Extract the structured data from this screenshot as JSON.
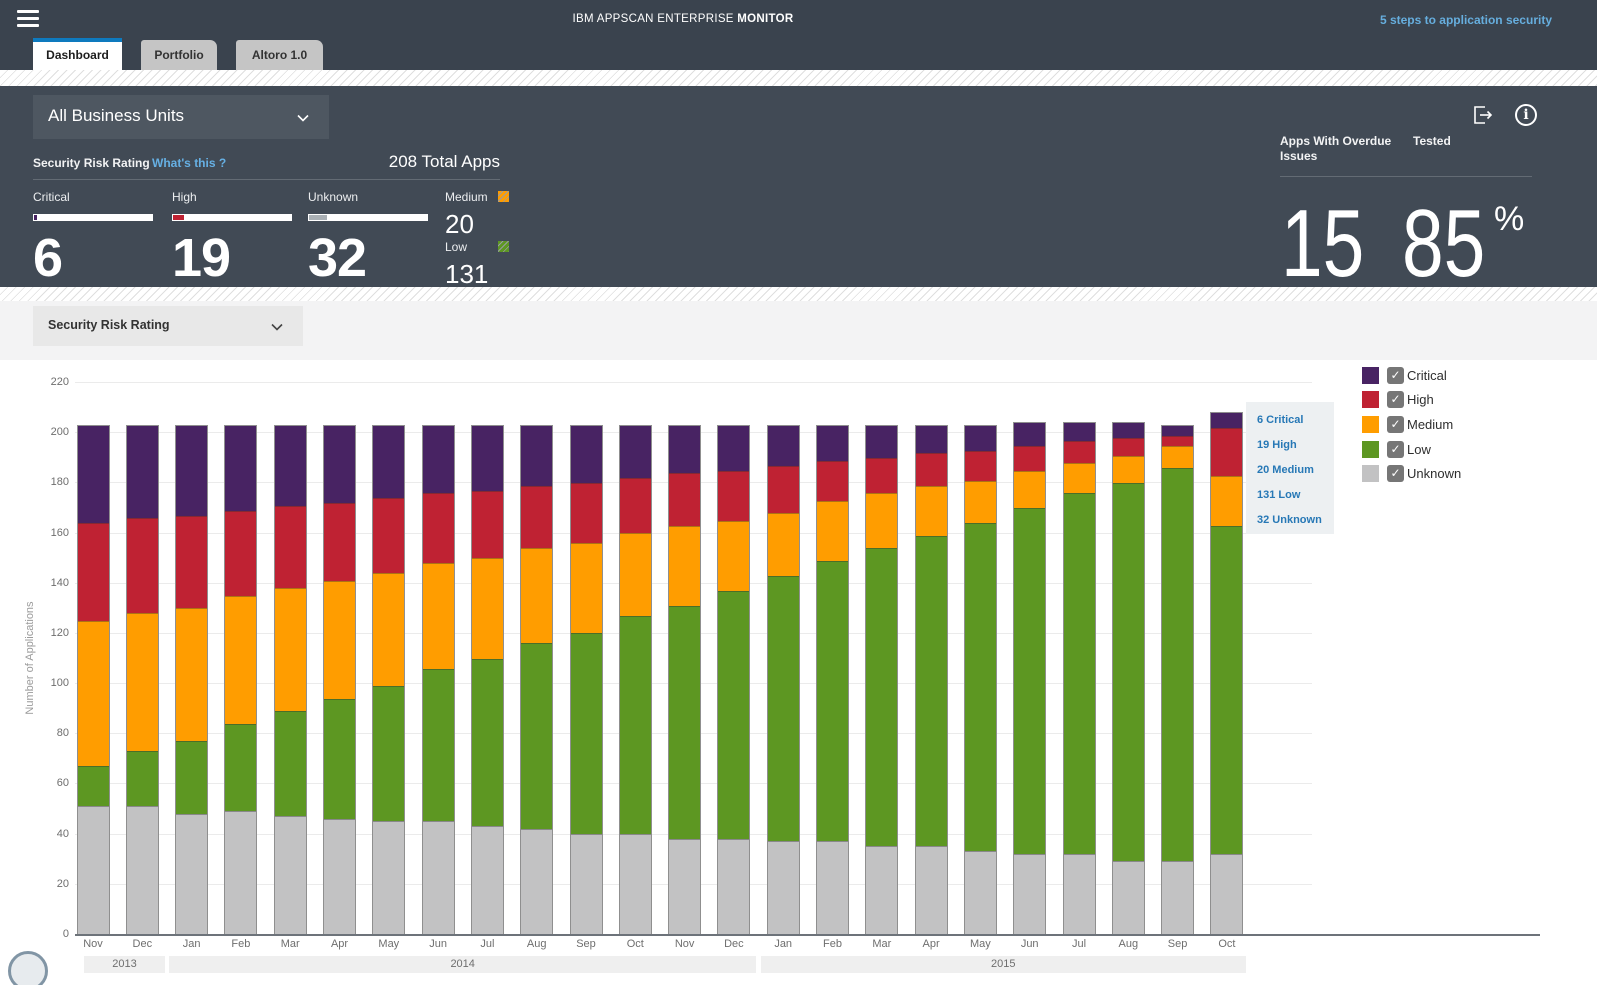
{
  "header": {
    "title_regular": "IBM APPSCAN ENTERPRISE ",
    "title_bold": "MONITOR",
    "link": "5 steps to application security"
  },
  "tabs": [
    {
      "label": "Dashboard",
      "active": true
    },
    {
      "label": "Portfolio",
      "active": false
    },
    {
      "label": "Altoro 1.0",
      "active": false
    }
  ],
  "filters": {
    "business_unit": "All Business Units",
    "view": "Security Risk Rating"
  },
  "summary": {
    "section_title": "Security Risk Rating",
    "whats_this": "What's this ?",
    "total_apps_text": "208 Total Apps",
    "total": 208,
    "metrics": [
      {
        "label": "Critical",
        "value": 6,
        "color": "#482363"
      },
      {
        "label": "High",
        "value": 19,
        "color": "#bf2233"
      },
      {
        "label": "Unknown",
        "value": 32,
        "color": "#aab0b5"
      }
    ],
    "side_metrics": [
      {
        "label": "Medium",
        "value": 20,
        "color": "#ff9d00"
      },
      {
        "label": "Low",
        "value": 131,
        "color": "#5d9722"
      }
    ],
    "overdue_label": "Apps With Overdue Issues",
    "overdue_value": "15",
    "tested_label": "Tested",
    "tested_value": "85",
    "tested_unit": "%"
  },
  "colors": {
    "header_bg": "#3a434e",
    "panel_bg": "#414a55",
    "accent_blue": "#0e7abe",
    "link_blue": "#66aede"
  },
  "chart_data": {
    "type": "bar",
    "stacked": true,
    "title": "",
    "xlabel": "",
    "ylabel": "Number of Applications",
    "ylim": [
      0,
      220
    ],
    "ytick_step": 20,
    "grid": true,
    "legend_position": "right",
    "categories": [
      "Nov",
      "Dec",
      "Jan",
      "Feb",
      "Mar",
      "Apr",
      "May",
      "Jun",
      "Jul",
      "Aug",
      "Sep",
      "Oct",
      "Nov",
      "Dec",
      "Jan",
      "Feb",
      "Mar",
      "Apr",
      "May",
      "Jun",
      "Jul",
      "Aug",
      "Sep",
      "Oct"
    ],
    "year_groups": [
      {
        "label": "2013",
        "months": 2
      },
      {
        "label": "2014",
        "months": 12
      },
      {
        "label": "2015",
        "months": 10
      }
    ],
    "series": [
      {
        "name": "Unknown",
        "color": "#c2c2c3",
        "values": [
          51,
          51,
          48,
          49,
          47,
          46,
          45,
          45,
          43,
          42,
          40,
          40,
          38,
          38,
          37,
          37,
          35,
          35,
          33,
          32,
          32,
          29,
          29,
          32
        ]
      },
      {
        "name": "Low",
        "color": "#5d9722",
        "values": [
          16,
          22,
          29,
          35,
          42,
          48,
          54,
          61,
          67,
          74,
          80,
          87,
          93,
          99,
          106,
          112,
          119,
          124,
          131,
          138,
          144,
          151,
          157,
          131
        ]
      },
      {
        "name": "Medium",
        "color": "#ff9d00",
        "values": [
          58,
          55,
          53,
          51,
          49,
          47,
          45,
          42,
          40,
          38,
          36,
          33,
          32,
          28,
          25,
          24,
          22,
          20,
          17,
          15,
          12,
          11,
          9,
          20
        ]
      },
      {
        "name": "High",
        "color": "#bf2233",
        "values": [
          39,
          38,
          37,
          34,
          33,
          31,
          30,
          28,
          27,
          25,
          24,
          22,
          21,
          20,
          19,
          16,
          14,
          13,
          12,
          10,
          9,
          7,
          4,
          19
        ]
      },
      {
        "name": "Critical",
        "color": "#482363",
        "values": [
          39,
          37,
          36,
          34,
          32,
          31,
          29,
          27,
          26,
          24,
          23,
          21,
          19,
          18,
          16,
          14,
          13,
          11,
          10,
          9,
          7,
          6,
          4,
          6
        ]
      }
    ],
    "legend": [
      {
        "label": "Critical",
        "color": "#482363",
        "checked": true
      },
      {
        "label": "High",
        "color": "#bf2233",
        "checked": true
      },
      {
        "label": "Medium",
        "color": "#ff9d00",
        "checked": true
      },
      {
        "label": "Low",
        "color": "#5d9722",
        "checked": true
      },
      {
        "label": "Unknown",
        "color": "#c2c2c3",
        "checked": true
      }
    ],
    "tooltip": {
      "rows": [
        "6 Critical",
        "19 High",
        "20 Medium",
        "131 Low",
        "32 Unknown"
      ]
    }
  }
}
